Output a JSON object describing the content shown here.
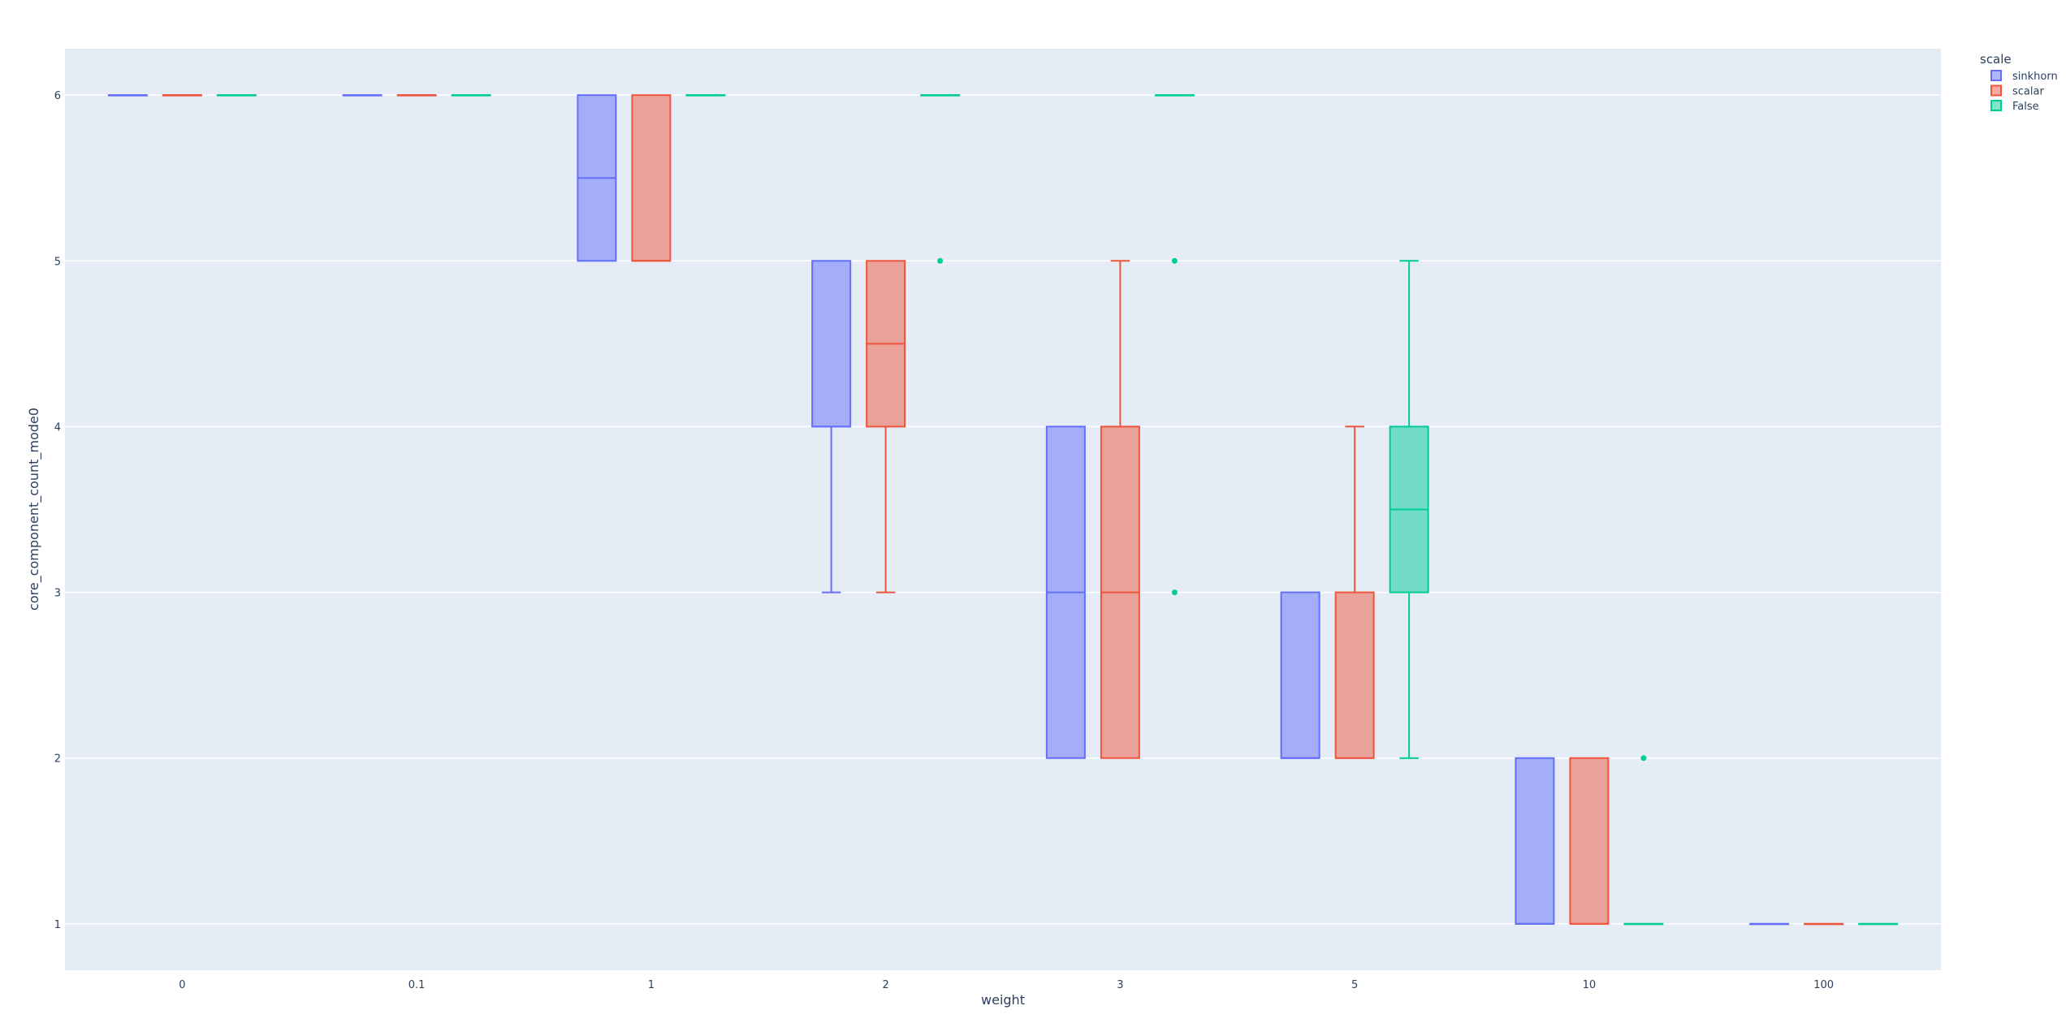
{
  "chart_data": {
    "type": "box",
    "xlabel": "weight",
    "ylabel": "core_component_count_mode0",
    "categories": [
      "0",
      "0.1",
      "1",
      "2",
      "3",
      "5",
      "10",
      "100"
    ],
    "ylim": [
      0.72,
      6.28
    ],
    "yticks": [
      "1",
      "2",
      "3",
      "4",
      "5",
      "6"
    ],
    "grid": true,
    "legend": {
      "title": "scale",
      "placement": "top-right"
    },
    "series": [
      {
        "name": "sinkhorn",
        "color": "#636efa",
        "fill": "rgba(99,110,250,0.5)",
        "boxes": [
          {
            "category": "0",
            "min": 6,
            "q1": 6,
            "median": 6,
            "q3": 6,
            "max": 6,
            "outliers": []
          },
          {
            "category": "0.1",
            "min": 6,
            "q1": 6,
            "median": 6,
            "q3": 6,
            "max": 6,
            "outliers": []
          },
          {
            "category": "1",
            "min": 5,
            "q1": 5,
            "median": 5.5,
            "q3": 6,
            "max": 6,
            "outliers": []
          },
          {
            "category": "2",
            "min": 3,
            "q1": 4,
            "median": 4,
            "q3": 5,
            "max": 5,
            "outliers": []
          },
          {
            "category": "3",
            "min": 2,
            "q1": 2,
            "median": 3,
            "q3": 4,
            "max": 4,
            "outliers": []
          },
          {
            "category": "5",
            "min": 2,
            "q1": 2,
            "median": 2,
            "q3": 3,
            "max": 3,
            "outliers": []
          },
          {
            "category": "10",
            "min": 1,
            "q1": 1,
            "median": 1,
            "q3": 2,
            "max": 2,
            "outliers": []
          },
          {
            "category": "100",
            "min": 1,
            "q1": 1,
            "median": 1,
            "q3": 1,
            "max": 1,
            "outliers": []
          }
        ]
      },
      {
        "name": "scalar",
        "color": "#ef553b",
        "fill": "rgba(239,85,59,0.5)",
        "boxes": [
          {
            "category": "0",
            "min": 6,
            "q1": 6,
            "median": 6,
            "q3": 6,
            "max": 6,
            "outliers": []
          },
          {
            "category": "0.1",
            "min": 6,
            "q1": 6,
            "median": 6,
            "q3": 6,
            "max": 6,
            "outliers": []
          },
          {
            "category": "1",
            "min": 5,
            "q1": 5,
            "median": 5,
            "q3": 6,
            "max": 6,
            "outliers": []
          },
          {
            "category": "2",
            "min": 3,
            "q1": 4,
            "median": 4.5,
            "q3": 5,
            "max": 5,
            "outliers": []
          },
          {
            "category": "3",
            "min": 2,
            "q1": 2,
            "median": 3,
            "q3": 4,
            "max": 5,
            "outliers": []
          },
          {
            "category": "5",
            "min": 2,
            "q1": 2,
            "median": 2,
            "q3": 3,
            "max": 4,
            "outliers": []
          },
          {
            "category": "10",
            "min": 1,
            "q1": 1,
            "median": 1,
            "q3": 2,
            "max": 2,
            "outliers": []
          },
          {
            "category": "100",
            "min": 1,
            "q1": 1,
            "median": 1,
            "q3": 1,
            "max": 1,
            "outliers": []
          }
        ]
      },
      {
        "name": "False",
        "color": "#00cc96",
        "fill": "rgba(0,204,150,0.5)",
        "boxes": [
          {
            "category": "0",
            "min": 6,
            "q1": 6,
            "median": 6,
            "q3": 6,
            "max": 6,
            "outliers": []
          },
          {
            "category": "0.1",
            "min": 6,
            "q1": 6,
            "median": 6,
            "q3": 6,
            "max": 6,
            "outliers": []
          },
          {
            "category": "1",
            "min": 6,
            "q1": 6,
            "median": 6,
            "q3": 6,
            "max": 6,
            "outliers": []
          },
          {
            "category": "2",
            "min": 6,
            "q1": 6,
            "median": 6,
            "q3": 6,
            "max": 6,
            "outliers": [
              5
            ]
          },
          {
            "category": "3",
            "min": 6,
            "q1": 6,
            "median": 6,
            "q3": 6,
            "max": 6,
            "outliers": [
              5,
              3
            ]
          },
          {
            "category": "5",
            "min": 2,
            "q1": 3,
            "median": 3.5,
            "q3": 4,
            "max": 5,
            "outliers": []
          },
          {
            "category": "10",
            "min": 1,
            "q1": 1,
            "median": 1,
            "q3": 1,
            "max": 1,
            "outliers": [
              2
            ]
          },
          {
            "category": "100",
            "min": 1,
            "q1": 1,
            "median": 1,
            "q3": 1,
            "max": 1,
            "outliers": []
          }
        ]
      }
    ]
  }
}
